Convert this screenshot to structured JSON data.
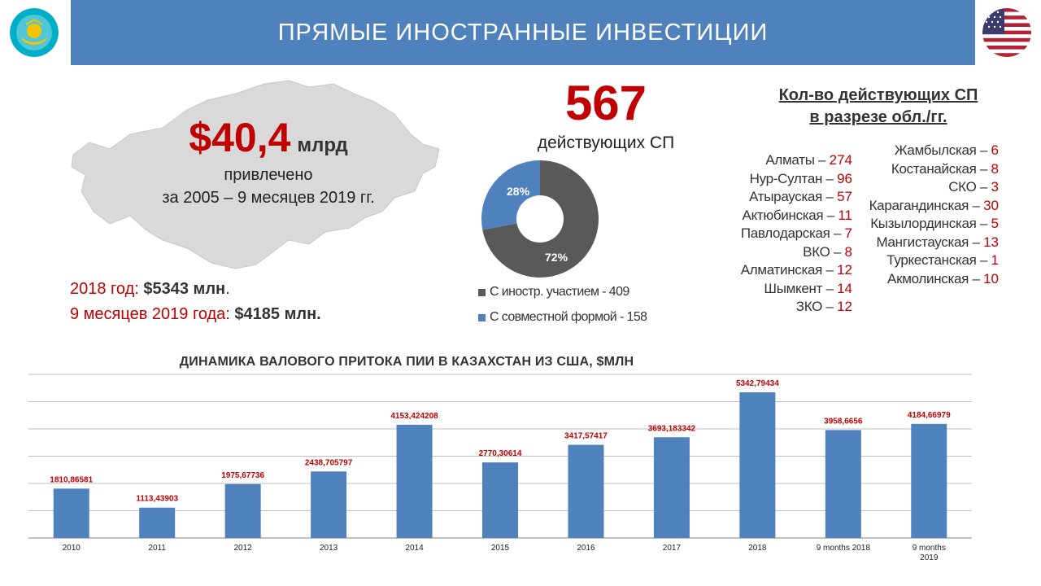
{
  "header": {
    "title": "ПРЯМЫЕ ИНОСТРАННЫЕ ИНВЕСТИЦИИ"
  },
  "summary": {
    "amount": "$40,4",
    "amount_unit": "млрд",
    "attracted": "привлечено",
    "period": "за 2005 – 9 месяцев 2019 гг.",
    "year2018_label": "2018 год: ",
    "year2018_value": "$5343 млн",
    "year2018_dot": ".",
    "months2019_label": "9 месяцев 2019 года: ",
    "months2019_value": "$4185 млн."
  },
  "joint_ventures": {
    "count": "567",
    "label": "действующих СП",
    "donut_labels": [
      "28%",
      "72%"
    ],
    "shares": [
      28,
      72
    ],
    "legend": [
      {
        "label": "С иностр. участием - 409",
        "color": "#595959"
      },
      {
        "label": "С совместной формой - 158",
        "color": "#4f81bd"
      }
    ]
  },
  "regions": {
    "title_line1": "Кол-во действующих СП",
    "title_line2": "в разрезе обл./гг.",
    "left": [
      {
        "name": "Алматы – ",
        "count": "274"
      },
      {
        "name": "Нур-Султан – ",
        "count": "96"
      },
      {
        "name": "Атырауская – ",
        "count": "57"
      },
      {
        "name": "Актюбинская – ",
        "count": "11"
      },
      {
        "name": "Павлодарская – ",
        "count": "7"
      },
      {
        "name": "ВКО – ",
        "count": "8"
      },
      {
        "name": "Алматинская – ",
        "count": "12"
      },
      {
        "name": "Шымкент – ",
        "count": "14"
      },
      {
        "name": "ЗКО – ",
        "count": "12"
      }
    ],
    "right": [
      {
        "name": "Жамбылская – ",
        "count": "6"
      },
      {
        "name": "Костанайская – ",
        "count": "8"
      },
      {
        "name": "СКО – ",
        "count": "3"
      },
      {
        "name": "Карагандинская – ",
        "count": "30"
      },
      {
        "name": "Кызылординская – ",
        "count": "5"
      },
      {
        "name": "Мангистауская – ",
        "count": "13"
      },
      {
        "name": "Туркестанская – ",
        "count": "1"
      },
      {
        "name": "Акмолинская – ",
        "count": "10"
      }
    ]
  },
  "colors": {
    "accent": "#4f81bd",
    "highlight": "#c00000",
    "dark": "#595959"
  },
  "chart_data": {
    "type": "bar",
    "title": "ДИНАМИКА ВАЛОВОГО ПРИТОКА ПИИ В КАЗАХСТАН ИЗ США, $МЛН",
    "categories": [
      "2010",
      "2011",
      "2012",
      "2013",
      "2014",
      "2015",
      "2016",
      "2017",
      "2018",
      "9 months 2018",
      "9 months 2019"
    ],
    "values": [
      1810.86581,
      1113.43903,
      1975.67736,
      2438.705797,
      4153.424208,
      2770.30614,
      3417.57417,
      3693.183342,
      5342.79434,
      3958.6656,
      4184.66979
    ],
    "value_labels": [
      "1810,86581",
      "1113,43903",
      "1975,67736",
      "2438,705797",
      "4153,424208",
      "2770,30614",
      "3417,57417",
      "3693,183342",
      "5342,79434",
      "3958,6656",
      "4184,66979"
    ],
    "ylim": [
      0,
      6000
    ],
    "grid": true,
    "bar_color": "#4f81bd",
    "label_color": "#c00000"
  }
}
